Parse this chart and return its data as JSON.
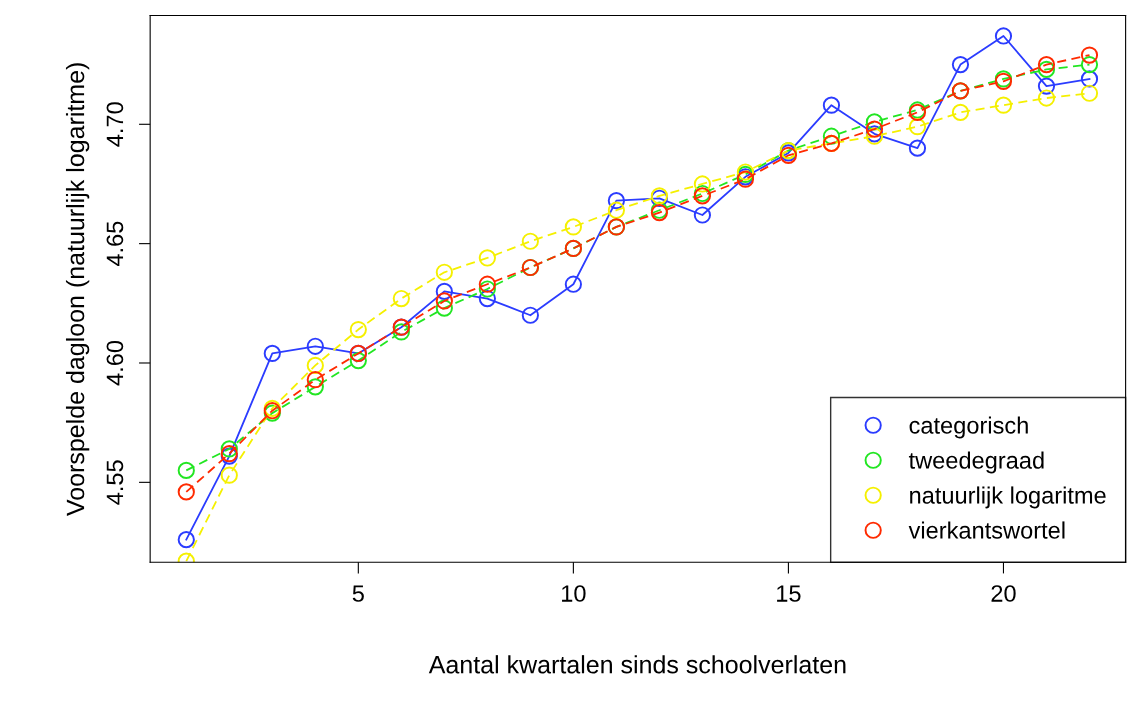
{
  "chart_data": {
    "type": "line",
    "xlabel": "Aantal kwartalen sinds schoolverlaten",
    "ylabel": "Voorspelde dagloon (natuurlijk logaritme)",
    "x": [
      1,
      2,
      3,
      4,
      5,
      6,
      7,
      8,
      9,
      10,
      11,
      12,
      13,
      14,
      15,
      16,
      17,
      18,
      19,
      20,
      21,
      22
    ],
    "series": [
      {
        "name": "categorisch",
        "color": "#2b3cff",
        "line_style": "solid",
        "values": [
          4.526,
          4.561,
          4.604,
          4.607,
          4.604,
          4.615,
          4.63,
          4.627,
          4.62,
          4.633,
          4.668,
          4.669,
          4.662,
          4.678,
          4.688,
          4.708,
          4.696,
          4.69,
          4.725,
          4.737,
          4.716,
          4.719
        ]
      },
      {
        "name": "tweedegraad",
        "color": "#22e622",
        "line_style": "dashed",
        "values": [
          4.555,
          4.564,
          4.579,
          4.59,
          4.601,
          4.613,
          4.623,
          4.631,
          4.64,
          4.648,
          4.657,
          4.664,
          4.671,
          4.679,
          4.689,
          4.695,
          4.701,
          4.706,
          4.714,
          4.719,
          4.723,
          4.725
        ]
      },
      {
        "name": "natuurlijk logaritme",
        "color": "#f5f000",
        "line_style": "dashed",
        "values": [
          4.517,
          4.553,
          4.581,
          4.599,
          4.614,
          4.627,
          4.638,
          4.644,
          4.651,
          4.657,
          4.664,
          4.67,
          4.675,
          4.68,
          4.689,
          4.692,
          4.695,
          4.699,
          4.705,
          4.708,
          4.711,
          4.713
        ]
      },
      {
        "name": "vierkantswortel",
        "color": "#ff2a00",
        "line_style": "dashed",
        "values": [
          4.546,
          4.562,
          4.58,
          4.593,
          4.604,
          4.615,
          4.626,
          4.633,
          4.64,
          4.648,
          4.657,
          4.663,
          4.67,
          4.677,
          4.687,
          4.692,
          4.698,
          4.705,
          4.714,
          4.718,
          4.725,
          4.729
        ]
      }
    ],
    "marker": "circle",
    "legend": "bottom right",
    "grid": false,
    "xlim": [
      0.16,
      22.84
    ],
    "ylim": [
      4.5165,
      4.7456
    ],
    "xticks": [
      5,
      10,
      15,
      20
    ],
    "yticks": [
      {
        "value": 4.55,
        "label": "4.55"
      },
      {
        "value": 4.6,
        "label": "4.60"
      },
      {
        "value": 4.65,
        "label": "4.65"
      },
      {
        "value": 4.7,
        "label": "4.70"
      }
    ]
  }
}
